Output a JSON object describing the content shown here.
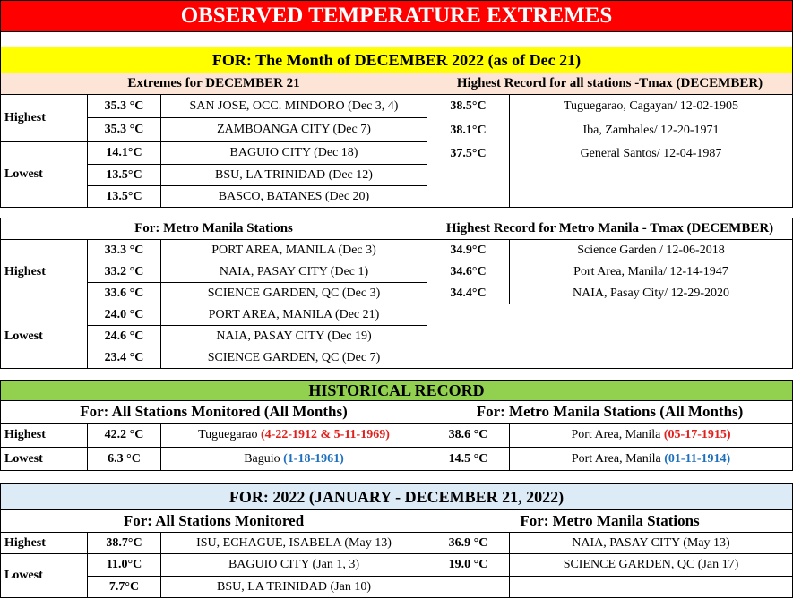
{
  "title": "OBSERVED TEMPERATURE EXTREMES",
  "month_banner": "FOR:   The Month of DECEMBER 2022 (as of  Dec 21)",
  "sec1": {
    "left_header": "Extremes for DECEMBER 21",
    "right_header": "Highest Record for all stations -Tmax (DECEMBER)",
    "highest_label": "Highest",
    "lowest_label": "Lowest",
    "rows": [
      {
        "value": "35.3 °C",
        "station": "SAN JOSE, OCC. MINDORO (Dec 3, 4)"
      },
      {
        "value": "35.3 °C",
        "station": "ZAMBOANGA CITY (Dec 7)"
      },
      {
        "value": "14.1°C",
        "station": "BAGUIO CITY  (Dec 18)"
      },
      {
        "value": "13.5°C",
        "station": "BSU, LA TRINIDAD (Dec 12)"
      },
      {
        "value": "13.5°C",
        "station": "BASCO, BATANES (Dec 20)"
      }
    ],
    "records": [
      {
        "value": "38.5°C",
        "station": "Tuguegarao, Cagayan/ 12-02-1905"
      },
      {
        "value": "38.1°C",
        "station": "Iba, Zambales/ 12-20-1971"
      },
      {
        "value": "37.5°C",
        "station": "General Santos/ 12-04-1987"
      }
    ]
  },
  "sec2": {
    "left_header": "For: Metro Manila Stations",
    "right_header": "Highest Record for Metro Manila - Tmax (DECEMBER)",
    "highest_label": "Highest",
    "lowest_label": "Lowest",
    "rows": [
      {
        "value": "33.3 °C",
        "station": "PORT AREA, MANILA (Dec 3)"
      },
      {
        "value": "33.2 °C",
        "station": "NAIA, PASAY CITY (Dec 1)"
      },
      {
        "value": "33.6 °C",
        "station": "SCIENCE GARDEN, QC (Dec 3)"
      },
      {
        "value": "24.0 °C",
        "station": "PORT AREA, MANILA (Dec 21)"
      },
      {
        "value": "24.6 °C",
        "station": "NAIA, PASAY CITY (Dec 19)"
      },
      {
        "value": "23.4 °C",
        "station": "SCIENCE GARDEN, QC (Dec 7)"
      }
    ],
    "records": [
      {
        "value": "34.9°C",
        "station": "Science Garden / 12-06-2018"
      },
      {
        "value": "34.6°C",
        "station": "Port Area, Manila/ 12-14-1947"
      },
      {
        "value": "34.4°C",
        "station": "NAIA, Pasay City/ 12-29-2020"
      }
    ]
  },
  "historical": {
    "banner": "HISTORICAL RECORD",
    "left_header": "For:  All Stations Monitored (All Months)",
    "right_header": "For:  Metro Manila Stations (All Months)",
    "highest_label": "Highest",
    "lowest_label": "Lowest",
    "high_value": "42.2 °C",
    "high_station": "Tuguegarao ",
    "high_date": "(4-22-1912 & 5-11-1969)",
    "low_value": "6.3 °C",
    "low_station": "Baguio ",
    "low_date": "(1-18-1961)",
    "mm_high_value": "38.6 °C",
    "mm_high_station": "Port Area, Manila ",
    "mm_high_date": "(05-17-1915)",
    "mm_low_value": "14.5 °C",
    "mm_low_station": "Port Area, Manila ",
    "mm_low_date": "(01-11-1914)"
  },
  "year": {
    "banner": "FOR:    2022 (JANUARY - DECEMBER 21, 2022)",
    "left_header": "For:  All Stations Monitored",
    "right_header": "For: Metro Manila Stations",
    "highest_label": "Highest",
    "lowest_label": "Lowest",
    "rows": [
      {
        "value": "38.7°C",
        "station": "ISU, ECHAGUE, ISABELA (May 13)"
      },
      {
        "value": "11.0°C",
        "station": "BAGUIO CITY  (Jan 1, 3)"
      },
      {
        "value": "7.7°C",
        "station": "BSU, LA TRINIDAD (Jan 10)"
      }
    ],
    "mm_rows": [
      {
        "value": "36.9 °C",
        "station": "NAIA, PASAY CITY (May 13)"
      },
      {
        "value": "19.0 °C",
        "station": "SCIENCE GARDEN, QC (Jan 17)"
      }
    ]
  },
  "colors": {
    "title_bg": "#ff0000",
    "month_bg": "#ffff00",
    "header_bg": "#fce4d6",
    "historical_bg": "#92d050",
    "year_bg": "#ddebf7",
    "red_text": "#e0201c",
    "blue_text": "#1f6fbf"
  }
}
